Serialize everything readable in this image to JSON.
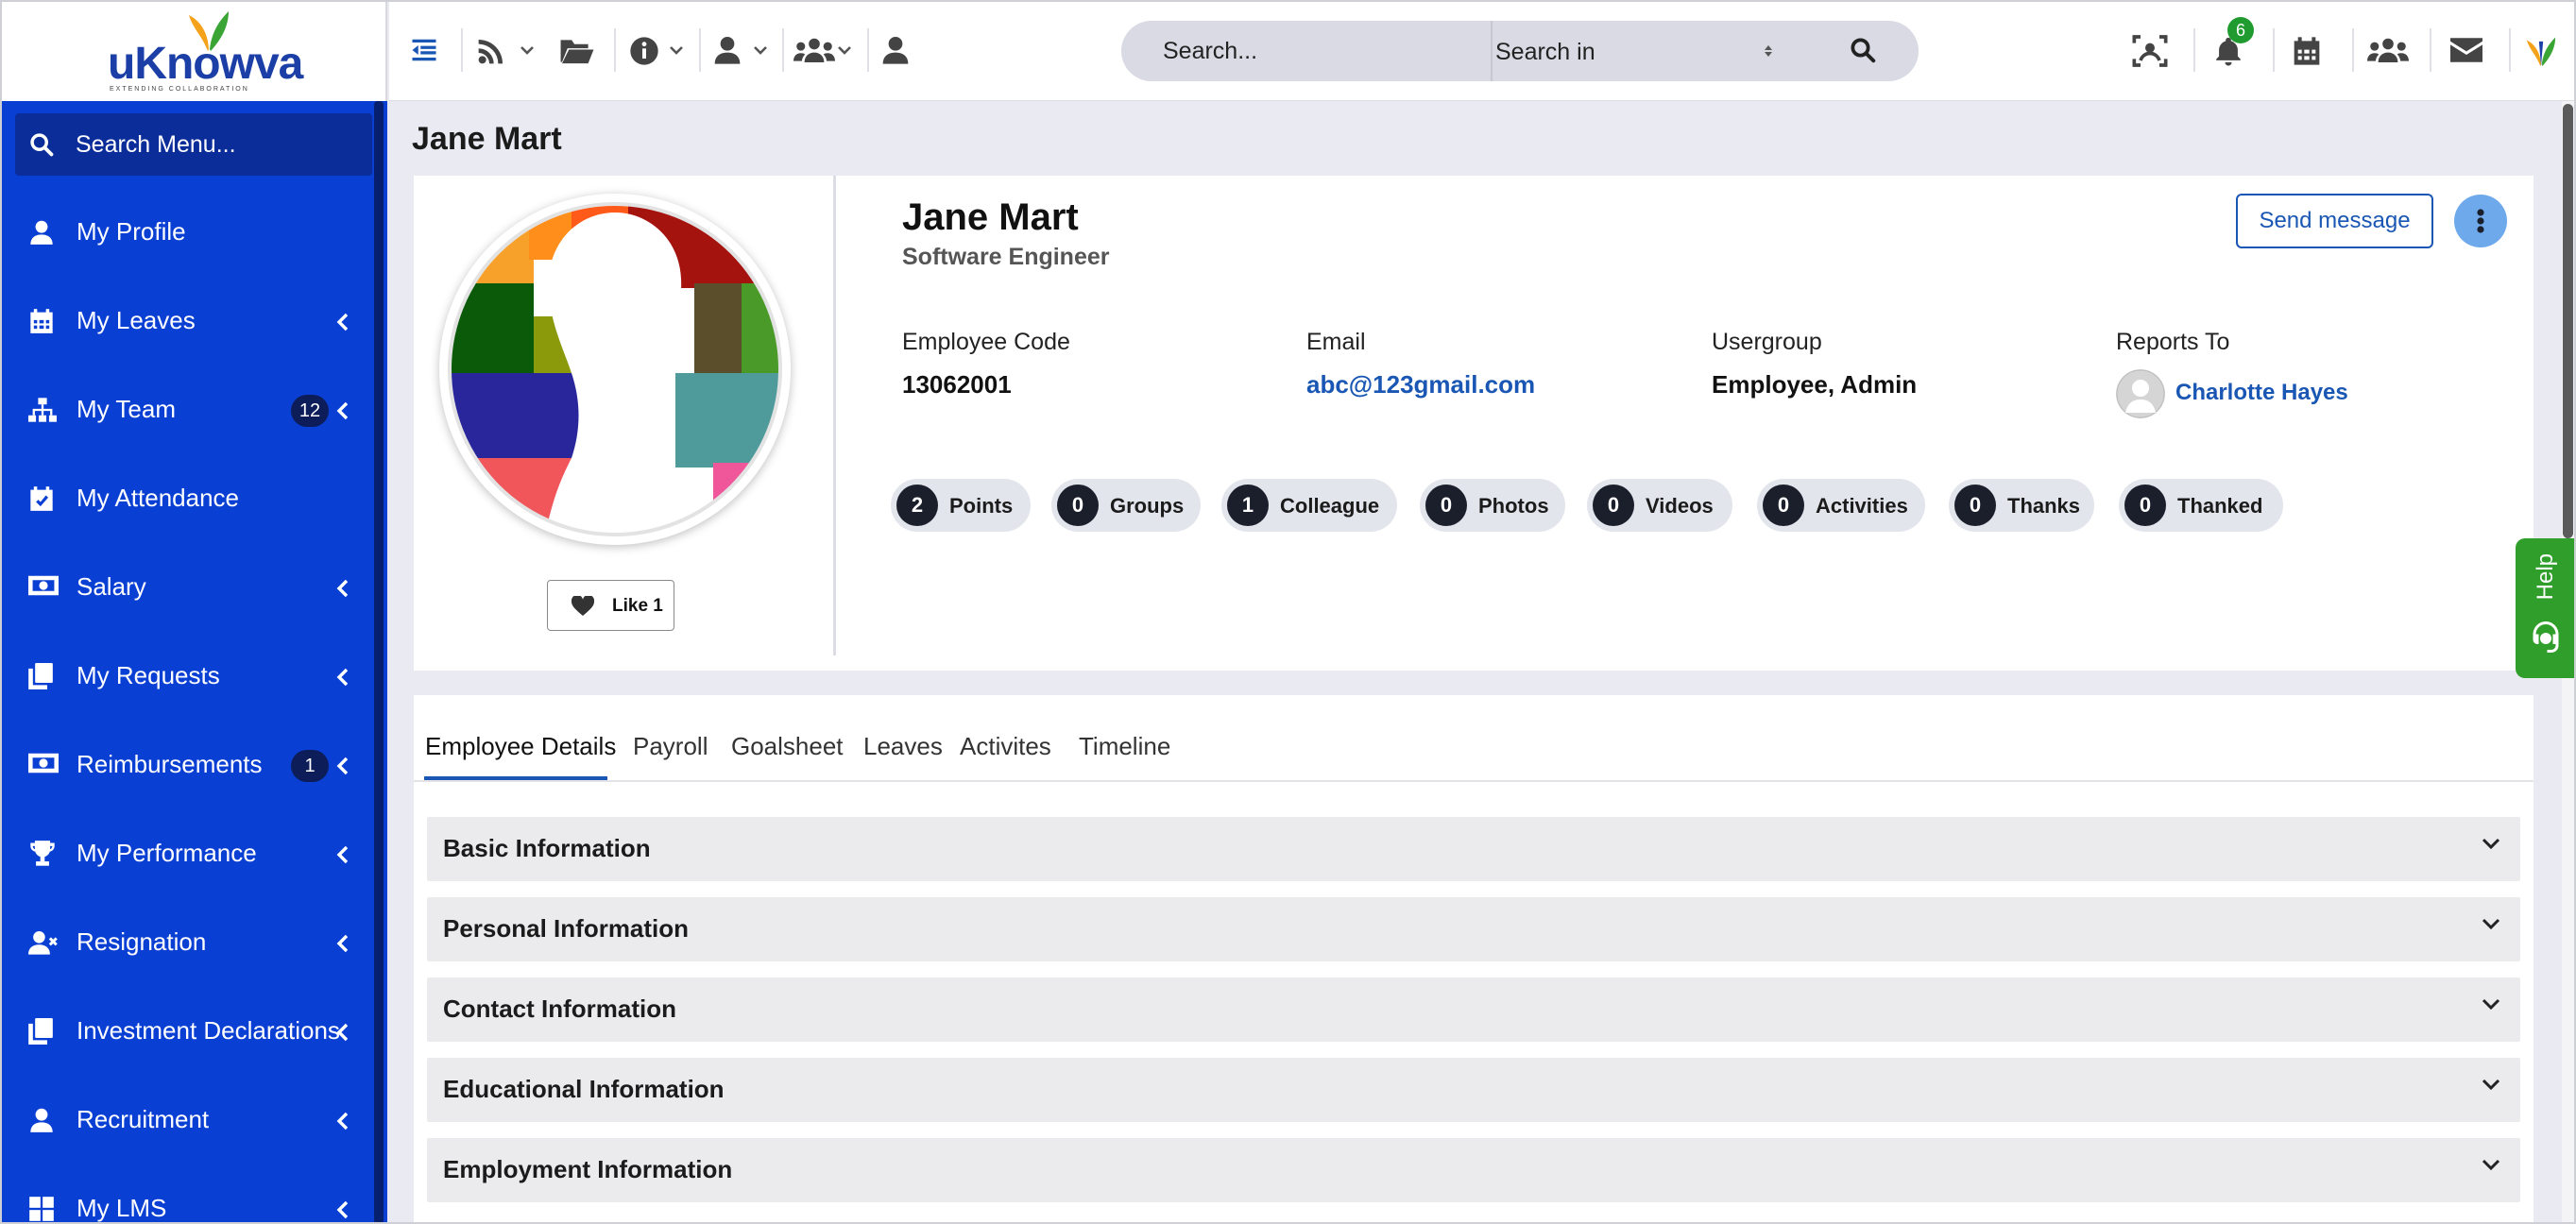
{
  "brand": {
    "name": "uKnowva",
    "tagline": "EXTENDING COLLABORATION"
  },
  "sidebar": {
    "search_label": "Search Menu...",
    "items": [
      {
        "label": "My Profile",
        "icon": "user-icon",
        "badge": "",
        "chevron": false
      },
      {
        "label": "My Leaves",
        "icon": "calendar-icon",
        "badge": "",
        "chevron": true
      },
      {
        "label": "My Team",
        "icon": "org-chart-icon",
        "badge": "12",
        "chevron": true
      },
      {
        "label": "My Attendance",
        "icon": "calendar-check-icon",
        "badge": "",
        "chevron": false
      },
      {
        "label": "Salary",
        "icon": "money-icon",
        "badge": "",
        "chevron": true
      },
      {
        "label": "My Requests",
        "icon": "copy-icon",
        "badge": "",
        "chevron": true
      },
      {
        "label": "Reimbursements",
        "icon": "money-icon",
        "badge": "1",
        "chevron": true
      },
      {
        "label": "My Performance",
        "icon": "trophy-icon",
        "badge": "",
        "chevron": true
      },
      {
        "label": "Resignation",
        "icon": "user-remove-icon",
        "badge": "",
        "chevron": true
      },
      {
        "label": "Investment Declarations",
        "icon": "copy-icon",
        "badge": "",
        "chevron": true
      },
      {
        "label": "Recruitment",
        "icon": "user-icon",
        "badge": "",
        "chevron": true
      },
      {
        "label": "My LMS",
        "icon": "grid-icon",
        "badge": "",
        "chevron": true
      }
    ]
  },
  "topbar": {
    "search_placeholder": "Search...",
    "search_in": "Search in",
    "notification_count": "6"
  },
  "profile": {
    "page_title": "Jane Mart",
    "name": "Jane Mart",
    "role": "Software Engineer",
    "like_label": "Like 1",
    "send_message": "Send message",
    "fields": [
      {
        "label": "Employee Code",
        "value": "13062001"
      },
      {
        "label": "Email",
        "value": "abc@123gmail.com"
      },
      {
        "label": "Usergroup",
        "value": "Employee, Admin"
      },
      {
        "label": "Reports To",
        "value": "Charlotte Hayes"
      }
    ],
    "stats": [
      {
        "count": "2",
        "label": "Points"
      },
      {
        "count": "0",
        "label": "Groups"
      },
      {
        "count": "1",
        "label": "Colleague"
      },
      {
        "count": "0",
        "label": "Photos"
      },
      {
        "count": "0",
        "label": "Videos"
      },
      {
        "count": "0",
        "label": "Activities"
      },
      {
        "count": "0",
        "label": "Thanks"
      },
      {
        "count": "0",
        "label": "Thanked"
      }
    ]
  },
  "tabs": [
    "Employee Details",
    "Payroll",
    "Goalsheet",
    "Leaves",
    "Activites",
    "Timeline"
  ],
  "sections": [
    "Basic Information",
    "Personal Information",
    "Contact Information",
    "Educational Information",
    "Employment Information"
  ],
  "help_label": "Help",
  "colors": {
    "sidebar": "#0a3fd4",
    "accent": "#1a57b4",
    "help": "#2f9e2a"
  }
}
